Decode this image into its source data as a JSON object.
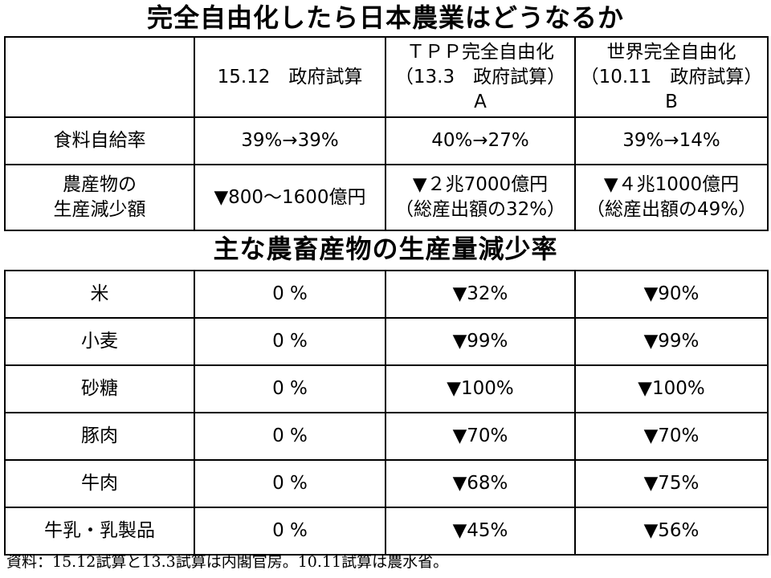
{
  "title": "完全自由化したら日本農業はどうなるか",
  "summary_table": {
    "headers": [
      "",
      "15.12　政府試算",
      "ＴＰＰ完全自由化\n（13.3　政府試算）\nA",
      "世界完全自由化\n（10.11　政府試算）\nB"
    ],
    "rows": [
      {
        "label": "食料自給率",
        "cells": [
          "39%→39%",
          "40%→27%",
          "39%→14%"
        ]
      },
      {
        "label": "農産物の\n生産減少額",
        "cells": [
          "▼800～1600億円",
          "▼２兆7000億円\n（総産出額の32%）",
          "▼４兆1000億円\n（総産出額の49%）"
        ]
      }
    ]
  },
  "subtitle": "主な農畜産物の生産量減少率",
  "products_table": {
    "rows": [
      {
        "label": "米",
        "cells": [
          "0 %",
          "▼32%",
          "▼90%"
        ]
      },
      {
        "label": "小麦",
        "cells": [
          "0 %",
          "▼99%",
          "▼99%"
        ]
      },
      {
        "label": "砂糖",
        "cells": [
          "0 %",
          "▼100%",
          "▼100%"
        ]
      },
      {
        "label": "豚肉",
        "cells": [
          "0 %",
          "▼70%",
          "▼70%"
        ]
      },
      {
        "label": "牛肉",
        "cells": [
          "0 %",
          "▼68%",
          "▼75%"
        ]
      },
      {
        "label": "牛乳・乳製品",
        "cells": [
          "0 %",
          "▼45%",
          "▼56%"
        ]
      }
    ]
  },
  "footer": "資料：15.12試算と13.3試算は内閣官房。10.11試算は農水省。"
}
